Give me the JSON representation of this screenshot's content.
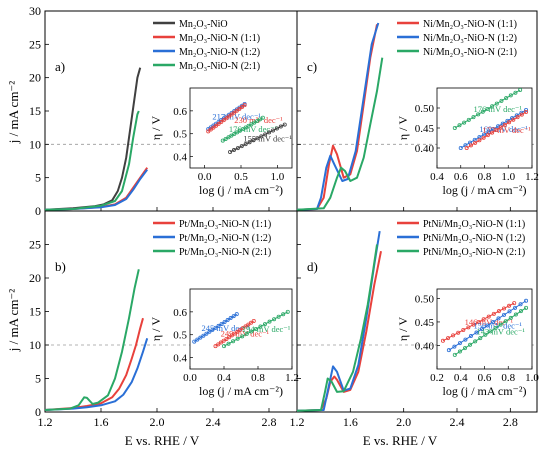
{
  "figure": {
    "ylabel": "j / mA cm⁻²",
    "xlabel": "E vs. RHE / V",
    "x_ticks": [
      "1.2",
      "1.6",
      "2.0",
      "2.4",
      "2.8"
    ],
    "y_ticks": [
      "0",
      "5",
      "10",
      "15",
      "20",
      "25",
      "30"
    ],
    "inset_ylabel": "η / V",
    "inset_xlabel": "log (j / mA cm⁻²)"
  },
  "chart_data": [
    {
      "id": "a",
      "panel_label": "a)",
      "type": "line",
      "xlim": [
        1.2,
        3.0
      ],
      "ylim": [
        0,
        30
      ],
      "reference_line_y": 10,
      "series": [
        {
          "name": "Mn₂O₃-NiO",
          "color": "#404040",
          "points": [
            [
              1.2,
              0.2
            ],
            [
              1.4,
              0.4
            ],
            [
              1.55,
              0.7
            ],
            [
              1.62,
              1.0
            ],
            [
              1.68,
              1.6
            ],
            [
              1.72,
              3
            ],
            [
              1.75,
              5
            ],
            [
              1.78,
              8
            ],
            [
              1.8,
              11
            ],
            [
              1.83,
              15.5
            ],
            [
              1.86,
              20
            ],
            [
              1.88,
              21.5
            ]
          ]
        },
        {
          "name": "Mn₂O₃-NiO-N (1:1)",
          "color": "#e8413c",
          "points": [
            [
              1.2,
              0.2
            ],
            [
              1.4,
              0.3
            ],
            [
              1.6,
              0.6
            ],
            [
              1.7,
              1.0
            ],
            [
              1.78,
              2
            ],
            [
              1.83,
              3.5
            ],
            [
              1.88,
              5
            ],
            [
              1.93,
              6.5
            ]
          ]
        },
        {
          "name": "Mn₂O₃-NiO-N (1:2)",
          "color": "#2a6fd6",
          "points": [
            [
              1.2,
              0.2
            ],
            [
              1.4,
              0.3
            ],
            [
              1.6,
              0.55
            ],
            [
              1.7,
              0.9
            ],
            [
              1.78,
              1.8
            ],
            [
              1.83,
              3.2
            ],
            [
              1.88,
              4.8
            ],
            [
              1.93,
              6.2
            ]
          ]
        },
        {
          "name": "Mn₂O₃-NiO-N (2:1)",
          "color": "#2aa866",
          "points": [
            [
              1.2,
              0.2
            ],
            [
              1.4,
              0.3
            ],
            [
              1.6,
              0.8
            ],
            [
              1.7,
              1.5
            ],
            [
              1.75,
              3
            ],
            [
              1.8,
              7
            ],
            [
              1.83,
              11
            ],
            [
              1.86,
              14.5
            ],
            [
              1.87,
              15
            ]
          ]
        }
      ],
      "inset": {
        "xlim": [
          -0.2,
          1.2
        ],
        "ylim": [
          0.35,
          0.7
        ],
        "x_ticks": [
          "0.0",
          "0.5",
          "1.0"
        ],
        "y_ticks": [
          "0.4",
          "0.5",
          "0.6"
        ],
        "tafel": [
          {
            "label": "217 mV dec⁻¹",
            "color": "#2a6fd6",
            "x": [
              0.05,
              0.55
            ],
            "y": [
              0.52,
              0.63
            ]
          },
          {
            "label": "",
            "color": "#e8413c",
            "x": [
              0.05,
              0.55
            ],
            "y": [
              0.51,
              0.625
            ]
          },
          {
            "label": "230 mV dec⁻¹",
            "color": "#e8413c",
            "x": [
              0.6,
              0.6
            ],
            "y": [
              0.56,
              0.56
            ]
          },
          {
            "label": "176 mV dec⁻¹",
            "color": "#2aa866",
            "x": [
              0.25,
              0.8
            ],
            "y": [
              0.47,
              0.57
            ]
          },
          {
            "label": "155 mV dec⁻¹",
            "color": "#404040",
            "x": [
              0.35,
              1.1
            ],
            "y": [
              0.42,
              0.54
            ]
          }
        ]
      },
      "legend": {
        "position": "top-right"
      }
    },
    {
      "id": "b",
      "panel_label": "b)",
      "type": "line",
      "xlim": [
        1.2,
        3.0
      ],
      "ylim": [
        0,
        30
      ],
      "reference_line_y": 10,
      "series": [
        {
          "name": "Pt/Mn₂O₃-NiO-N (1:1)",
          "color": "#e8413c",
          "points": [
            [
              1.2,
              0.3
            ],
            [
              1.4,
              0.6
            ],
            [
              1.5,
              0.9
            ],
            [
              1.6,
              1.3
            ],
            [
              1.68,
              2.2
            ],
            [
              1.73,
              3.5
            ],
            [
              1.78,
              5.5
            ],
            [
              1.82,
              8
            ],
            [
              1.85,
              10
            ],
            [
              1.88,
              12.5
            ],
            [
              1.9,
              14
            ]
          ]
        },
        {
          "name": "Pt/Mn₂O₃-NiO-N (1:2)",
          "color": "#2a6fd6",
          "points": [
            [
              1.2,
              0.3
            ],
            [
              1.4,
              0.5
            ],
            [
              1.5,
              0.7
            ],
            [
              1.6,
              1.0
            ],
            [
              1.7,
              1.6
            ],
            [
              1.76,
              2.6
            ],
            [
              1.82,
              4.5
            ],
            [
              1.86,
              6.5
            ],
            [
              1.9,
              9
            ],
            [
              1.93,
              11
            ]
          ]
        },
        {
          "name": "Pt/Mn₂O₃-NiO-N (2:1)",
          "color": "#2aa866",
          "points": [
            [
              1.2,
              0.3
            ],
            [
              1.38,
              0.5
            ],
            [
              1.44,
              1.0
            ],
            [
              1.48,
              2.2
            ],
            [
              1.5,
              2.1
            ],
            [
              1.54,
              1.2
            ],
            [
              1.58,
              1.4
            ],
            [
              1.65,
              2.5
            ],
            [
              1.7,
              5
            ],
            [
              1.75,
              9
            ],
            [
              1.8,
              14
            ],
            [
              1.84,
              18.5
            ],
            [
              1.87,
              21.3
            ]
          ]
        }
      ],
      "inset": {
        "xlim": [
          0.0,
          1.2
        ],
        "ylim": [
          0.35,
          0.7
        ],
        "x_ticks": [
          "0.0",
          "0.4",
          "0.8",
          "1.2"
        ],
        "y_ticks": [
          "0.4",
          "0.5",
          "0.6"
        ],
        "tafel": [
          {
            "label": "245 mV dec⁻¹",
            "color": "#2a6fd6",
            "x": [
              0.05,
              0.55
            ],
            "y": [
              0.47,
              0.59
            ]
          },
          {
            "label": "249 mV dec⁻¹",
            "color": "#e8413c",
            "x": [
              0.3,
              0.75
            ],
            "y": [
              0.45,
              0.56
            ]
          },
          {
            "label": "194 mV dec⁻¹",
            "color": "#2aa866",
            "x": [
              0.4,
              1.15
            ],
            "y": [
              0.45,
              0.6
            ]
          }
        ]
      },
      "legend": {
        "position": "top-right"
      }
    },
    {
      "id": "c",
      "panel_label": "c)",
      "type": "line",
      "xlim": [
        1.2,
        3.0
      ],
      "ylim": [
        0,
        30
      ],
      "reference_line_y": 10,
      "series": [
        {
          "name": "Ni/Mn₂O₃-NiO-N (1:1)",
          "color": "#e8413c",
          "points": [
            [
              1.2,
              0.2
            ],
            [
              1.35,
              0.3
            ],
            [
              1.4,
              2
            ],
            [
              1.44,
              7
            ],
            [
              1.47,
              9.8
            ],
            [
              1.5,
              8.5
            ],
            [
              1.55,
              5
            ],
            [
              1.6,
              5.5
            ],
            [
              1.65,
              9
            ],
            [
              1.7,
              16
            ],
            [
              1.75,
              23
            ],
            [
              1.8,
              28
            ]
          ]
        },
        {
          "name": "Ni/Mn₂O₃-NiO-N (1:2)",
          "color": "#2a6fd6",
          "points": [
            [
              1.2,
              0.2
            ],
            [
              1.35,
              0.3
            ],
            [
              1.38,
              2
            ],
            [
              1.42,
              6.5
            ],
            [
              1.45,
              8.3
            ],
            [
              1.48,
              7
            ],
            [
              1.54,
              4.5
            ],
            [
              1.58,
              4.8
            ],
            [
              1.64,
              9
            ],
            [
              1.7,
              17
            ],
            [
              1.76,
              25
            ],
            [
              1.81,
              28.2
            ]
          ]
        },
        {
          "name": "Ni/Mn₂O₃-NiO-N (2:1)",
          "color": "#2aa866",
          "points": [
            [
              1.2,
              0.2
            ],
            [
              1.4,
              0.4
            ],
            [
              1.45,
              2
            ],
            [
              1.5,
              5
            ],
            [
              1.53,
              6.5
            ],
            [
              1.56,
              6
            ],
            [
              1.6,
              4.5
            ],
            [
              1.65,
              5
            ],
            [
              1.7,
              8
            ],
            [
              1.75,
              13
            ],
            [
              1.8,
              18
            ],
            [
              1.84,
              23
            ]
          ]
        }
      ],
      "inset": {
        "xlim": [
          0.4,
          1.2
        ],
        "ylim": [
          0.35,
          0.55
        ],
        "x_ticks": [
          "0.4",
          "0.6",
          "0.8",
          "1.0",
          "1.2"
        ],
        "y_ticks": [
          "0.40",
          "0.45",
          "0.50"
        ],
        "tafel": [
          {
            "label": "176 mV dec⁻¹",
            "color": "#2aa866",
            "x": [
              0.55,
              1.1
            ],
            "y": [
              0.45,
              0.545
            ]
          },
          {
            "label": "169 mV dec⁻¹",
            "color": "#2a6fd6",
            "x": [
              0.6,
              1.15
            ],
            "y": [
              0.4,
              0.495
            ]
          },
          {
            "label": "177 mV dec⁻¹",
            "color": "#e8413c",
            "x": [
              0.65,
              1.15
            ],
            "y": [
              0.4,
              0.49
            ]
          }
        ]
      },
      "legend": {
        "position": "top-right"
      }
    },
    {
      "id": "d",
      "panel_label": "d)",
      "type": "line",
      "xlim": [
        1.2,
        3.0
      ],
      "ylim": [
        0,
        30
      ],
      "reference_line_y": 10,
      "series": [
        {
          "name": "PtNi/Mn₂O₃-NiO-N (1:1)",
          "color": "#e8413c",
          "points": [
            [
              1.2,
              0.2
            ],
            [
              1.38,
              0.3
            ],
            [
              1.42,
              2
            ],
            [
              1.45,
              4.5
            ],
            [
              1.48,
              5.3
            ],
            [
              1.5,
              4.8
            ],
            [
              1.55,
              3
            ],
            [
              1.6,
              3.3
            ],
            [
              1.66,
              6
            ],
            [
              1.72,
              12
            ],
            [
              1.78,
              19
            ],
            [
              1.83,
              24
            ]
          ]
        },
        {
          "name": "PtNi/Mn₂O₃-NiO-N (1:2)",
          "color": "#2a6fd6",
          "points": [
            [
              1.2,
              0.2
            ],
            [
              1.4,
              0.3
            ],
            [
              1.44,
              4
            ],
            [
              1.47,
              6.8
            ],
            [
              1.5,
              6
            ],
            [
              1.55,
              3.2
            ],
            [
              1.6,
              3.5
            ],
            [
              1.66,
              7
            ],
            [
              1.72,
              14
            ],
            [
              1.78,
              22
            ],
            [
              1.82,
              27
            ]
          ]
        },
        {
          "name": "PtNi/Mn₂O₃-NiO-N (2:1)",
          "color": "#2aa866",
          "points": [
            [
              1.2,
              0.2
            ],
            [
              1.38,
              0.3
            ],
            [
              1.41,
              3
            ],
            [
              1.43,
              5
            ],
            [
              1.46,
              4.5
            ],
            [
              1.5,
              3
            ],
            [
              1.55,
              3.1
            ],
            [
              1.62,
              6
            ],
            [
              1.68,
              11
            ],
            [
              1.73,
              16
            ],
            [
              1.77,
              21
            ],
            [
              1.8,
              25
            ]
          ]
        }
      ],
      "inset": {
        "xlim": [
          0.2,
          1.0
        ],
        "ylim": [
          0.35,
          0.52
        ],
        "x_ticks": [
          "0.2",
          "0.4",
          "0.6",
          "0.8",
          "1.0"
        ],
        "y_ticks": [
          "0.40",
          "0.45",
          "0.50"
        ],
        "tafel": [
          {
            "label": "146 mV dec⁻¹",
            "color": "#e8413c",
            "x": [
              0.25,
              0.85
            ],
            "y": [
              0.41,
              0.49
            ]
          },
          {
            "label": "156 mV dec⁻¹",
            "color": "#2a6fd6",
            "x": [
              0.3,
              0.95
            ],
            "y": [
              0.39,
              0.495
            ]
          },
          {
            "label": "143 mV dec⁻¹",
            "color": "#2aa866",
            "x": [
              0.35,
              0.95
            ],
            "y": [
              0.38,
              0.48
            ]
          }
        ]
      },
      "legend": {
        "position": "top-right"
      }
    }
  ]
}
